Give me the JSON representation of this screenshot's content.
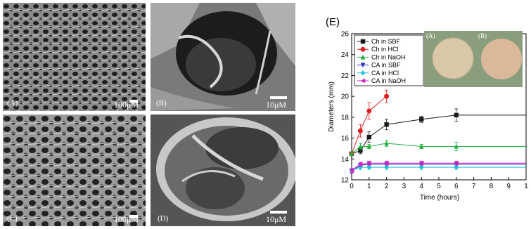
{
  "panels": [
    {
      "label": "(A)",
      "scale": "100μM"
    },
    {
      "label": "(B)",
      "scale": "10μM"
    },
    {
      "label": "(C)",
      "scale": "100μM"
    },
    {
      "label": "(D)",
      "scale": "10μM"
    }
  ],
  "chart_tag": "(E)",
  "inset": {
    "left_label": "(A)",
    "right_label": "(B)"
  },
  "chart_data": {
    "type": "line",
    "xlabel": "Time (hours)",
    "ylabel": "Diameters (mm)",
    "xlim": [
      0,
      10
    ],
    "ylim": [
      12,
      26
    ],
    "xticks": [
      "0",
      "1",
      "2",
      "3",
      "4",
      "5",
      "6",
      "7",
      "8",
      "9",
      "1"
    ],
    "yticks": [
      "12",
      "14",
      "16",
      "18",
      "20",
      "22",
      "24",
      "26"
    ],
    "grid": false,
    "legend_position": "top-left",
    "series": [
      {
        "name": "Ch in SBF",
        "color": "#1a1a1a",
        "marker": "square",
        "x": [
          0,
          0.5,
          1,
          2,
          4,
          6
        ],
        "y": [
          14.5,
          14.8,
          16.1,
          17.3,
          17.8,
          18.2
        ],
        "err": [
          0.2,
          0.3,
          0.5,
          0.5,
          0.3,
          0.6
        ],
        "extend_to": 10
      },
      {
        "name": "Ch in HCl",
        "color": "#e02020",
        "marker": "circle",
        "x": [
          0,
          0.5,
          1,
          2
        ],
        "y": [
          14.5,
          16.7,
          18.6,
          20.0
        ],
        "err": [
          0.2,
          0.6,
          0.8,
          0.6
        ],
        "extend_to": null
      },
      {
        "name": "Ch in NaOH",
        "color": "#20b040",
        "marker": "triangle-up",
        "x": [
          0,
          0.5,
          1,
          2,
          4,
          6
        ],
        "y": [
          14.5,
          15.2,
          15.2,
          15.5,
          15.2,
          15.2
        ],
        "err": [
          0.2,
          0.3,
          0.2,
          0.3,
          0.2,
          0.4
        ],
        "extend_to": 10
      },
      {
        "name": "CA in SBF",
        "color": "#2030c0",
        "marker": "triangle-down",
        "x": [
          0,
          0.5,
          1,
          2,
          4,
          6
        ],
        "y": [
          12.8,
          13.4,
          13.5,
          13.5,
          13.5,
          13.5
        ],
        "err": [
          0.2,
          0.2,
          0.2,
          0.2,
          0.2,
          0.2
        ],
        "extend_to": 10
      },
      {
        "name": "CA in HCl",
        "color": "#18c0d8",
        "marker": "diamond",
        "x": [
          0,
          0.5,
          1,
          2,
          4,
          6
        ],
        "y": [
          12.9,
          13.2,
          13.2,
          13.2,
          13.2,
          13.2
        ],
        "err": [
          0.2,
          0.2,
          0.2,
          0.2,
          0.2,
          0.2
        ],
        "extend_to": 10
      },
      {
        "name": "CA in NaOH",
        "color": "#d020c0",
        "marker": "triangle-left",
        "x": [
          0,
          0.5,
          1,
          2,
          4,
          6
        ],
        "y": [
          12.9,
          13.5,
          13.6,
          13.6,
          13.6,
          13.6
        ],
        "err": [
          0.2,
          0.2,
          0.2,
          0.2,
          0.2,
          0.2
        ],
        "extend_to": 10
      }
    ]
  }
}
